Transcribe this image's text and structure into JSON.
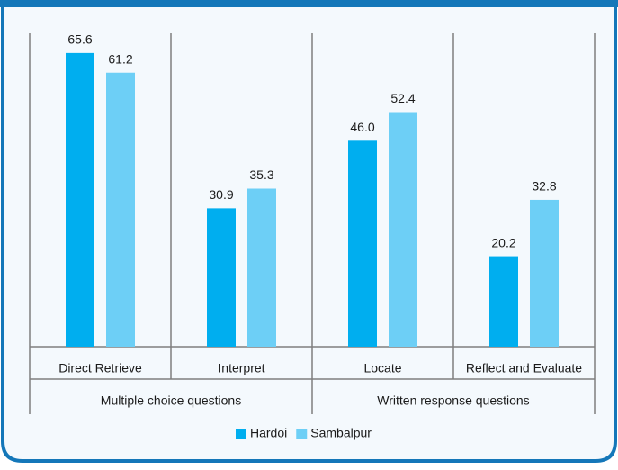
{
  "chart_data": {
    "type": "bar",
    "groups": [
      {
        "name": "Multiple choice questions",
        "categories": [
          "Direct Retrieve",
          "Interpret"
        ]
      },
      {
        "name": "Written response questions",
        "categories": [
          "Locate",
          "Reflect and Evaluate"
        ]
      }
    ],
    "series": [
      {
        "name": "Hardoi",
        "color": "#00aeef",
        "values": [
          65.6,
          30.9,
          46.0,
          20.2
        ],
        "value_labels": [
          "65.6",
          "30.9",
          "46.0",
          "20.2"
        ]
      },
      {
        "name": "Sambalpur",
        "color": "#6dcff6",
        "values": [
          61.2,
          35.3,
          52.4,
          32.8
        ],
        "value_labels": [
          "61.2",
          "35.3",
          "52.4",
          "32.8"
        ]
      }
    ],
    "ylim": [
      0,
      70
    ],
    "legend": "bottom"
  }
}
